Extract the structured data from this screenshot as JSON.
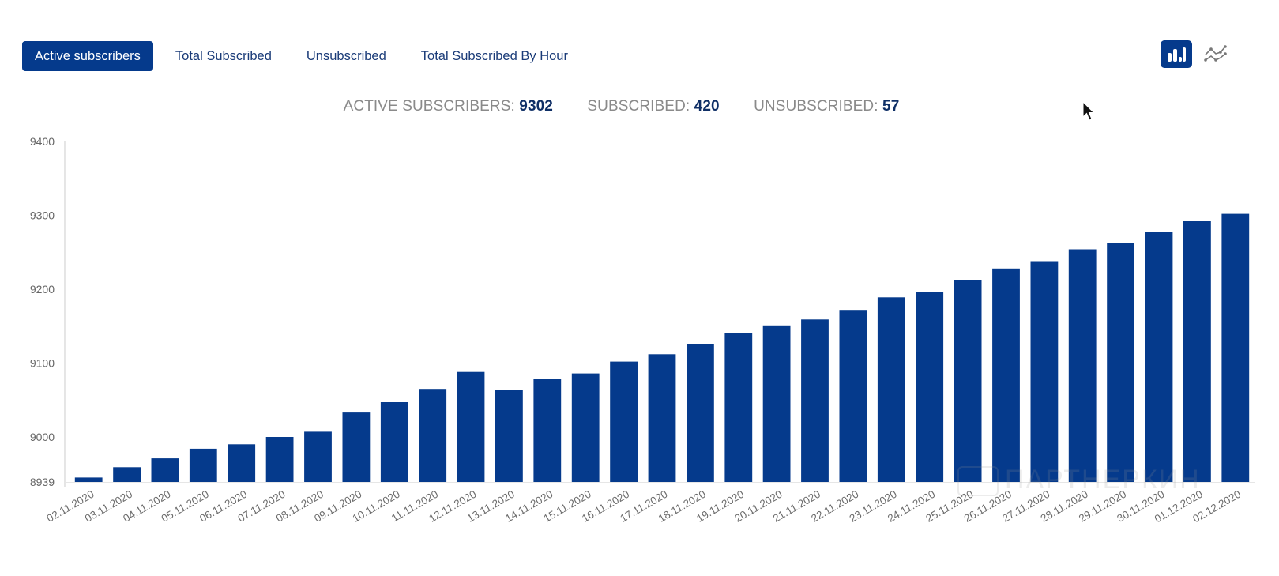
{
  "tabs": [
    {
      "label": "Active subscribers",
      "active": true
    },
    {
      "label": "Total Subscribed",
      "active": false
    },
    {
      "label": "Unsubscribed",
      "active": false
    },
    {
      "label": "Total Subscribed By Hour",
      "active": false
    }
  ],
  "view_toggle": {
    "bar_icon": "bar-chart-icon",
    "line_icon": "line-chart-icon",
    "active": "bar"
  },
  "summary": {
    "active_label": "ACTIVE SUBSCRIBERS:",
    "active_value": "9302",
    "subscribed_label": "SUBSCRIBED:",
    "subscribed_value": "420",
    "unsubscribed_label": "UNSUBSCRIBED:",
    "unsubscribed_value": "57"
  },
  "watermark": "ПАРТНЕРКИН",
  "colors": {
    "accent": "#053a8c",
    "bar": "#053a8c",
    "tab_text": "#1a3b78",
    "label_gray": "#8a8a8a"
  },
  "chart_data": {
    "type": "bar",
    "title": "",
    "xlabel": "",
    "ylabel": "",
    "ylim": [
      8939,
      9400
    ],
    "yticks": [
      8939,
      9000,
      9100,
      9200,
      9300,
      9400
    ],
    "grid": false,
    "legend": "none",
    "categories": [
      "02.11.2020",
      "03.11.2020",
      "04.11.2020",
      "05.11.2020",
      "06.11.2020",
      "07.11.2020",
      "08.11.2020",
      "09.11.2020",
      "10.11.2020",
      "11.11.2020",
      "12.11.2020",
      "13.11.2020",
      "14.11.2020",
      "15.11.2020",
      "16.11.2020",
      "17.11.2020",
      "18.11.2020",
      "19.11.2020",
      "20.11.2020",
      "21.11.2020",
      "22.11.2020",
      "23.11.2020",
      "24.11.2020",
      "25.11.2020",
      "26.11.2020",
      "27.11.2020",
      "28.11.2020",
      "29.11.2020",
      "30.11.2020",
      "01.12.2020",
      "02.12.2020"
    ],
    "series": [
      {
        "name": "Active subscribers",
        "values": [
          8945,
          8959,
          8971,
          8984,
          8990,
          9000,
          9007,
          9033,
          9047,
          9065,
          9088,
          9064,
          9078,
          9086,
          9102,
          9112,
          9126,
          9141,
          9151,
          9159,
          9172,
          9189,
          9196,
          9212,
          9228,
          9238,
          9254,
          9263,
          9278,
          9292,
          9302
        ]
      }
    ]
  }
}
